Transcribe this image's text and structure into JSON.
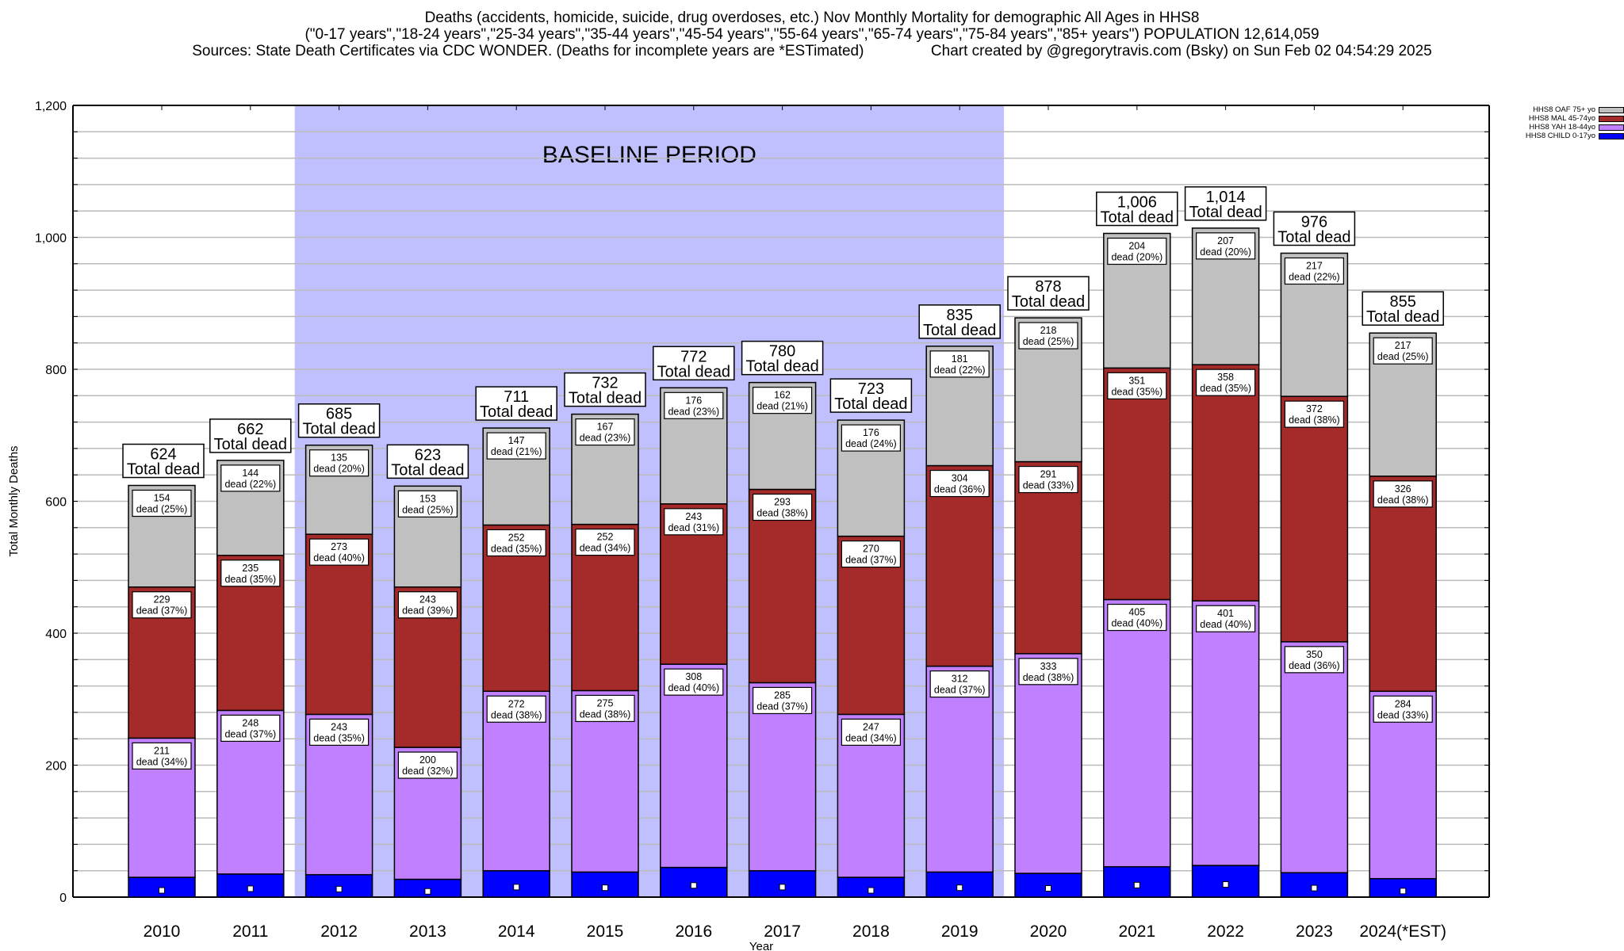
{
  "header": {
    "line1": "Deaths (accidents, homicide, suicide, drug overdoses, etc.) Nov Monthly Mortality for demographic All Ages in HHS8",
    "line2": "(\"0-17 years\",\"18-24 years\",\"25-34 years\",\"35-44 years\",\"45-54 years\",\"55-64 years\",\"65-74 years\",\"75-84 years\",\"85+ years\") POPULATION 12,614,059",
    "line3_left": "Sources: State Death Certificates via CDC WONDER. (Deaths for incomplete years are *ESTimated)",
    "line3_right": "Chart created by @gregorytravis.com (Bsky) on Sun Feb 02 04:54:29 2025"
  },
  "chart_data": {
    "type": "bar",
    "stacked": true,
    "title": "Deaths (accidents, homicide, suicide, drug overdoses, etc.) Nov Monthly Mortality for demographic All Ages in HHS8",
    "xlabel": "Year",
    "ylabel": "Total Monthly Deaths",
    "ylim": [
      0,
      1200
    ],
    "yticks": [
      0,
      200,
      400,
      600,
      800,
      1000,
      1200
    ],
    "ytick_labels": [
      "0",
      "200",
      "400",
      "600",
      "800",
      "1,000",
      "1,200"
    ],
    "minor_grid_step": 40,
    "grid": true,
    "legend_position": "top-right",
    "categories": [
      "2010",
      "2011",
      "2012",
      "2013",
      "2014",
      "2015",
      "2016",
      "2017",
      "2018",
      "2019",
      "2020",
      "2021",
      "2022",
      "2023",
      "2024(*EST)"
    ],
    "series": [
      {
        "name": "HHS8 CHILD 0-17yo",
        "color": "#0000ff",
        "values": [
          30,
          35,
          34,
          27,
          40,
          38,
          45,
          40,
          30,
          38,
          36,
          46,
          48,
          37,
          28
        ],
        "pct_labels": null
      },
      {
        "name": "HHS8 YAH 18-44yo",
        "color": "#c080ff",
        "values": [
          211,
          248,
          243,
          200,
          272,
          275,
          308,
          285,
          247,
          312,
          333,
          405,
          401,
          350,
          284
        ],
        "pct_labels": [
          34,
          37,
          35,
          32,
          38,
          38,
          40,
          37,
          34,
          37,
          38,
          40,
          40,
          36,
          33
        ]
      },
      {
        "name": "HHS8 MAL 45-74yo",
        "color": "#a52a2a",
        "values": [
          229,
          235,
          273,
          243,
          252,
          252,
          243,
          293,
          270,
          304,
          291,
          351,
          358,
          372,
          326
        ],
        "pct_labels": [
          37,
          35,
          40,
          39,
          35,
          34,
          31,
          38,
          37,
          36,
          33,
          35,
          35,
          38,
          38
        ]
      },
      {
        "name": "HHS8 OAF 75+ yo",
        "color": "#c0c0c0",
        "values": [
          154,
          144,
          135,
          153,
          147,
          167,
          176,
          162,
          176,
          181,
          218,
          204,
          207,
          217,
          217
        ],
        "pct_labels": [
          25,
          22,
          20,
          25,
          21,
          23,
          23,
          21,
          24,
          22,
          25,
          20,
          20,
          22,
          25
        ]
      }
    ],
    "totals": [
      624,
      662,
      685,
      623,
      711,
      732,
      772,
      780,
      723,
      835,
      878,
      1006,
      1014,
      976,
      855
    ],
    "total_labels": [
      "624",
      "662",
      "685",
      "623",
      "711",
      "732",
      "772",
      "780",
      "723",
      "835",
      "878",
      "1,006",
      "1,014",
      "976",
      "855"
    ],
    "total_suffix": "Total dead",
    "segment_suffix": "dead",
    "annotations": [
      {
        "text": "BASELINE PERIOD",
        "span_categories": [
          "2012",
          "2019"
        ],
        "color": "#c0c0ff"
      }
    ]
  },
  "legend": {
    "items": [
      {
        "label": "HHS8 OAF 75+ yo",
        "color": "#c0c0c0"
      },
      {
        "label": "HHS8 MAL 45-74yo",
        "color": "#a52a2a"
      },
      {
        "label": "HHS8 YAH 18-44yo",
        "color": "#c080ff"
      },
      {
        "label": "HHS8 CHILD 0-17yo",
        "color": "#0000ff"
      }
    ]
  }
}
